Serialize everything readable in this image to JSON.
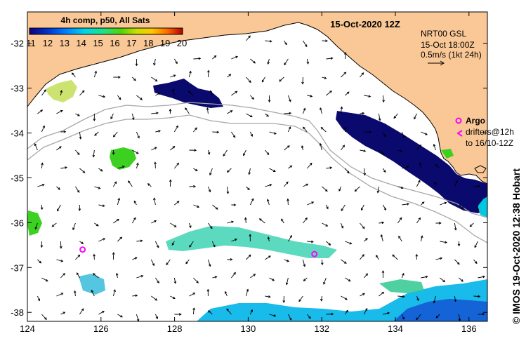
{
  "title": "15-Oct-2020 12Z",
  "colorbar": {
    "title": "4h comp, p50, All Sats",
    "ticks": [
      "11",
      "12",
      "13",
      "14",
      "15",
      "16",
      "17",
      "18",
      "19",
      "20"
    ],
    "colors": [
      "#12007a",
      "#0033cc",
      "#0080ff",
      "#00d4e8",
      "#1ee08a",
      "#54d400",
      "#c8e000",
      "#ffc800",
      "#ff6a00",
      "#d81a00",
      "#a00000"
    ]
  },
  "currents": {
    "source": "NRT00 GSL",
    "time": "15-Oct 18:00Z",
    "scale": "0.5m/s (1kt 24h)"
  },
  "legend": {
    "argo": "Argo",
    "drifters_line1": "drifters@12h",
    "drifters_line2": "to 16/10-12Z"
  },
  "axes": {
    "lon_ticks": [
      {
        "value": 124,
        "label": "124"
      },
      {
        "value": 126,
        "label": "126"
      },
      {
        "value": 128,
        "label": "128"
      },
      {
        "value": 130,
        "label": "130"
      },
      {
        "value": 132,
        "label": "132"
      },
      {
        "value": 134,
        "label": "134"
      },
      {
        "value": 136,
        "label": "136"
      }
    ],
    "lat_ticks": [
      {
        "value": -32,
        "label": "-32"
      },
      {
        "value": -33,
        "label": "-33"
      },
      {
        "value": -34,
        "label": "-34"
      },
      {
        "value": -35,
        "label": "-35"
      },
      {
        "value": -36,
        "label": "-36"
      },
      {
        "value": -37,
        "label": "-37"
      },
      {
        "value": -38,
        "label": "-38"
      }
    ],
    "lon_range": [
      124,
      136.5
    ],
    "lat_range": [
      -38.2,
      -31.3
    ]
  },
  "argo_floats": [
    {
      "lon": 131.8,
      "lat": -36.7
    },
    {
      "lon": 125.5,
      "lat": -36.6
    }
  ],
  "colors": {
    "land": "#fac896",
    "shelf": "#a8a8a8",
    "argo": "#ff00ff"
  },
  "credit": "© IMOS 19-Oct-2020 12:38 Hobart"
}
